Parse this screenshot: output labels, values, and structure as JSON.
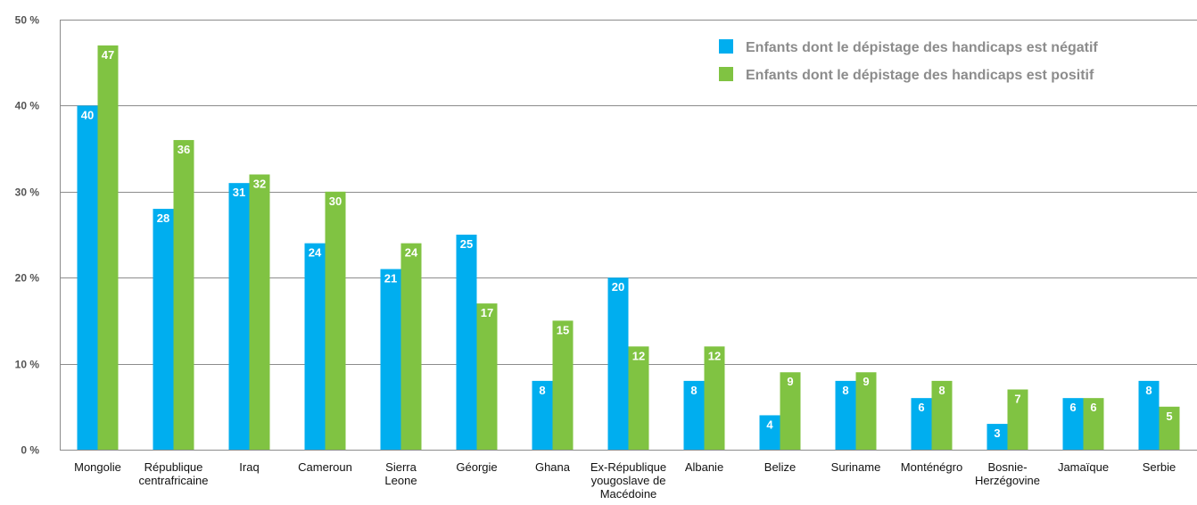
{
  "chart_data": {
    "type": "bar",
    "categories": [
      "Mongolie",
      "République centrafricaine",
      "Iraq",
      "Cameroun",
      "Sierra Leone",
      "Géorgie",
      "Ghana",
      "Ex-République yougoslave de Macédoine",
      "Albanie",
      "Belize",
      "Suriname",
      "Monténégro",
      "Bosnie-Herzégovine",
      "Jamaïque",
      "Serbie"
    ],
    "category_lines": [
      [
        "Mongolie"
      ],
      [
        "République",
        "centrafricaine"
      ],
      [
        "Iraq"
      ],
      [
        "Cameroun"
      ],
      [
        "Sierra",
        "Leone"
      ],
      [
        "Géorgie"
      ],
      [
        "Ghana"
      ],
      [
        "Ex-République",
        "yougoslave de",
        "Macédoine"
      ],
      [
        "Albanie"
      ],
      [
        "Belize"
      ],
      [
        "Suriname"
      ],
      [
        "Monténégro"
      ],
      [
        "Bosnie-",
        "Herzégovine"
      ],
      [
        "Jamaïque"
      ],
      [
        "Serbie"
      ]
    ],
    "series": [
      {
        "name": "Enfants dont le dépistage des handicaps est négatif",
        "color": "#00aeef",
        "values": [
          40,
          28,
          31,
          24,
          21,
          25,
          8,
          20,
          8,
          4,
          8,
          6,
          3,
          6,
          8
        ]
      },
      {
        "name": "Enfants dont le dépistage des handicaps est positif",
        "color": "#80c342",
        "values": [
          47,
          36,
          32,
          30,
          24,
          17,
          15,
          12,
          12,
          9,
          9,
          8,
          7,
          6,
          5
        ]
      }
    ],
    "ylim": [
      0,
      50
    ],
    "yticks": [
      0,
      10,
      20,
      30,
      40,
      50
    ],
    "ytick_labels": [
      "0 %",
      "10 %",
      "20 %",
      "30 %",
      "40 %",
      "50 %"
    ],
    "grid": true,
    "legend_position": "top-right",
    "gridline_color": "#8c8c8c",
    "legend_text_color": "#8c8c8c"
  }
}
